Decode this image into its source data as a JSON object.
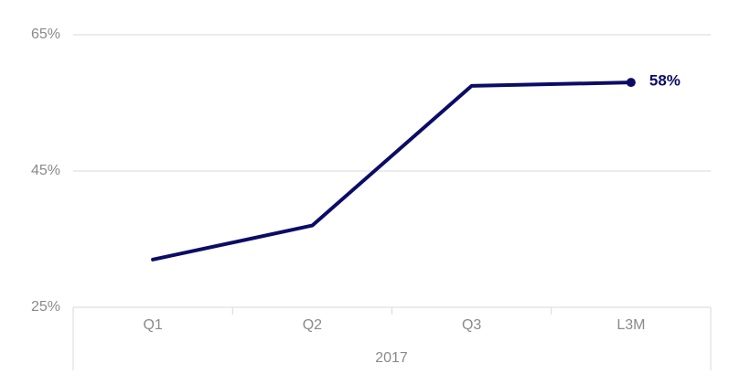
{
  "chart_data": {
    "type": "line",
    "categories": [
      "Q1",
      "Q2",
      "Q3",
      "L3M"
    ],
    "group_label": "2017",
    "series": [
      {
        "color": "#0c0c66",
        "values": [
          32,
          37,
          57.5,
          58
        ],
        "value_labels": [
          null,
          null,
          null,
          "58%"
        ]
      }
    ],
    "ylim": [
      25,
      65
    ],
    "yticks": [
      {
        "value": 25,
        "label": "25%"
      },
      {
        "value": 45,
        "label": "45%"
      },
      {
        "value": 65,
        "label": "65%"
      }
    ],
    "grid": true
  }
}
